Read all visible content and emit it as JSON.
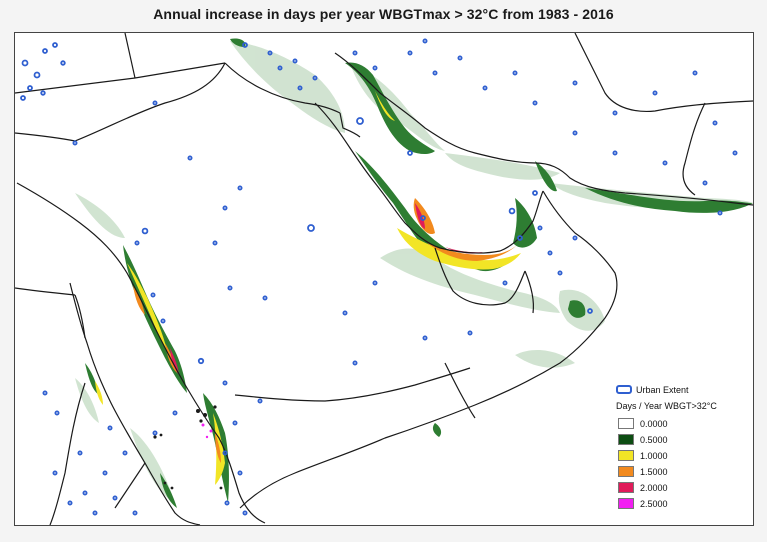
{
  "map": {
    "title": "Annual increase in days per year WBGTmax > 32°C from 1983 - 2016"
  },
  "legend": {
    "urban_label": "Urban Extent",
    "urban_color": "#2f5fd0",
    "scale_title": "Days / Year WBGT>32°C",
    "items": [
      {
        "label": "0.0000",
        "color": "#ffffff"
      },
      {
        "label": "0.5000",
        "color": "#0d4d12"
      },
      {
        "label": "1.0000",
        "color": "#f2e526"
      },
      {
        "label": "1.5000",
        "color": "#f28a1e"
      },
      {
        "label": "2.0000",
        "color": "#e01b5a"
      },
      {
        "label": "2.5000",
        "color": "#f21ef2"
      }
    ]
  }
}
